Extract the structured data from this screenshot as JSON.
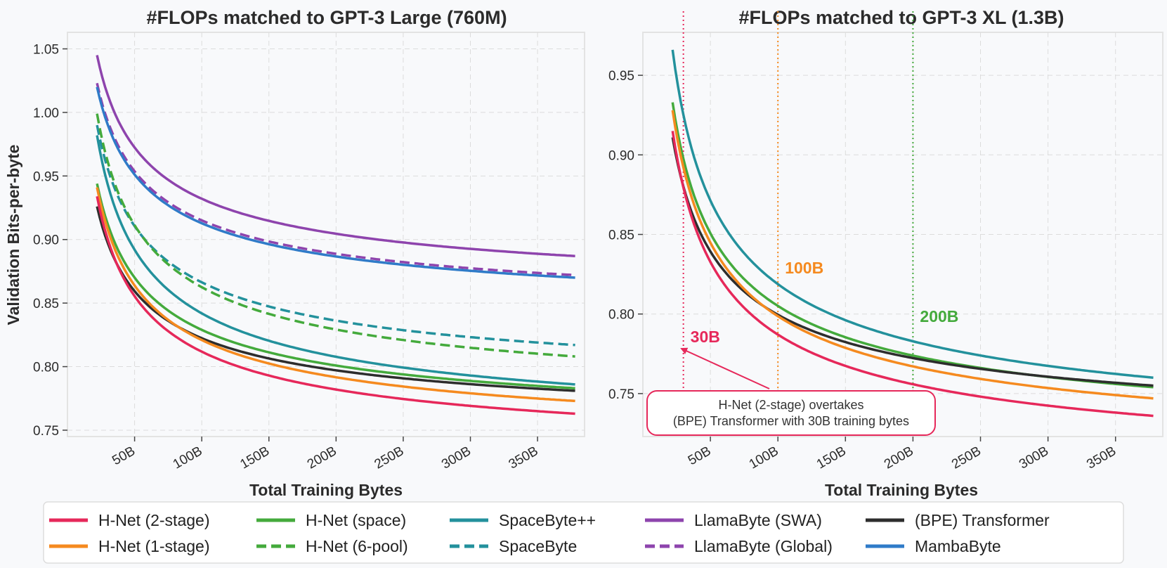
{
  "chart_data": [
    {
      "type": "line",
      "title": "#FLOPs matched to GPT-3 Large (760M)",
      "xlabel": "Total Training Bytes",
      "ylabel": "Validation Bits-per-byte",
      "xlim": [
        0,
        385
      ],
      "ylim": [
        0.745,
        1.063
      ],
      "x_ticks": [
        50,
        100,
        150,
        200,
        250,
        300,
        350
      ],
      "x_tick_labels": [
        "50B",
        "100B",
        "150B",
        "200B",
        "250B",
        "300B",
        "350B"
      ],
      "y_ticks": [
        0.75,
        0.8,
        0.85,
        0.9,
        0.95,
        1.0,
        1.05
      ],
      "y_tick_labels": [
        "0.75",
        "0.80",
        "0.85",
        "0.90",
        "0.95",
        "1.00",
        "1.05"
      ],
      "grid": true,
      "series": [
        {
          "name": "LlamaByte (SWA)",
          "color": "#8e44ad",
          "dash": false,
          "y0": 1.045,
          "yend": 0.887
        },
        {
          "name": "LlamaByte (Global)",
          "color": "#8e44ad",
          "dash": true,
          "y0": 1.023,
          "yend": 0.872
        },
        {
          "name": "MambaByte",
          "color": "#2f7bc8",
          "dash": false,
          "y0": 1.02,
          "yend": 0.87
        },
        {
          "name": "SpaceByte",
          "color": "#23919c",
          "dash": true,
          "y0": 0.99,
          "yend": 0.817
        },
        {
          "name": "H-Net (6-pool)",
          "color": "#44aa3c",
          "dash": true,
          "y0": 0.999,
          "yend": 0.808
        },
        {
          "name": "SpaceByte++",
          "color": "#23919c",
          "dash": false,
          "y0": 0.982,
          "yend": 0.786
        },
        {
          "name": "H-Net (space)",
          "color": "#44aa3c",
          "dash": false,
          "y0": 0.944,
          "yend": 0.783
        },
        {
          "name": "(BPE) Transformer",
          "color": "#2d2d2d",
          "dash": false,
          "y0": 0.926,
          "yend": 0.781
        },
        {
          "name": "H-Net (1-stage)",
          "color": "#f58a1f",
          "dash": false,
          "y0": 0.941,
          "yend": 0.773
        },
        {
          "name": "H-Net (2-stage)",
          "color": "#e6285a",
          "dash": false,
          "y0": 0.934,
          "yend": 0.763
        }
      ]
    },
    {
      "type": "line",
      "title": "#FLOPs matched to GPT-3 XL (1.3B)",
      "xlabel": "Total Training Bytes",
      "ylabel": "",
      "xlim": [
        0,
        385
      ],
      "ylim": [
        0.723,
        0.977
      ],
      "x_ticks": [
        50,
        100,
        150,
        200,
        250,
        300,
        350
      ],
      "x_tick_labels": [
        "50B",
        "100B",
        "150B",
        "200B",
        "250B",
        "300B",
        "350B"
      ],
      "y_ticks": [
        0.75,
        0.8,
        0.85,
        0.9,
        0.95
      ],
      "y_tick_labels": [
        "0.75",
        "0.80",
        "0.85",
        "0.90",
        "0.95"
      ],
      "grid": true,
      "series": [
        {
          "name": "SpaceByte++",
          "color": "#23919c",
          "dash": false,
          "y0": 0.966,
          "yend": 0.76
        },
        {
          "name": "H-Net (space)",
          "color": "#44aa3c",
          "dash": false,
          "y0": 0.933,
          "yend": 0.754
        },
        {
          "name": "(BPE) Transformer",
          "color": "#2d2d2d",
          "dash": false,
          "y0": 0.911,
          "yend": 0.755
        },
        {
          "name": "H-Net (1-stage)",
          "color": "#f58a1f",
          "dash": false,
          "y0": 0.928,
          "yend": 0.747
        },
        {
          "name": "H-Net (2-stage)",
          "color": "#e6285a",
          "dash": false,
          "y0": 0.915,
          "yend": 0.736
        }
      ],
      "markers": [
        {
          "x": 30,
          "label": "30B",
          "color": "#e6285a"
        },
        {
          "x": 100,
          "label": "100B",
          "color": "#f58a1f"
        },
        {
          "x": 200,
          "label": "200B",
          "color": "#44aa3c"
        }
      ],
      "annotation": {
        "line1": "H-Net (2-stage) overtakes",
        "line2": "(BPE) Transformer with 30B training bytes",
        "color": "#e6285a"
      }
    }
  ],
  "legend": {
    "placement": "bottom",
    "items": [
      {
        "label": "H-Net (2-stage)",
        "color": "#e6285a",
        "dash": false
      },
      {
        "label": "H-Net (1-stage)",
        "color": "#f58a1f",
        "dash": false
      },
      {
        "label": "H-Net (space)",
        "color": "#44aa3c",
        "dash": false
      },
      {
        "label": "H-Net (6-pool)",
        "color": "#44aa3c",
        "dash": true
      },
      {
        "label": "SpaceByte++",
        "color": "#23919c",
        "dash": false
      },
      {
        "label": "SpaceByte",
        "color": "#23919c",
        "dash": true
      },
      {
        "label": "LlamaByte (SWA)",
        "color": "#8e44ad",
        "dash": false
      },
      {
        "label": "LlamaByte (Global)",
        "color": "#8e44ad",
        "dash": true
      },
      {
        "label": "(BPE) Transformer",
        "color": "#2d2d2d",
        "dash": false
      },
      {
        "label": "MambaByte",
        "color": "#2f7bc8",
        "dash": false
      }
    ]
  }
}
